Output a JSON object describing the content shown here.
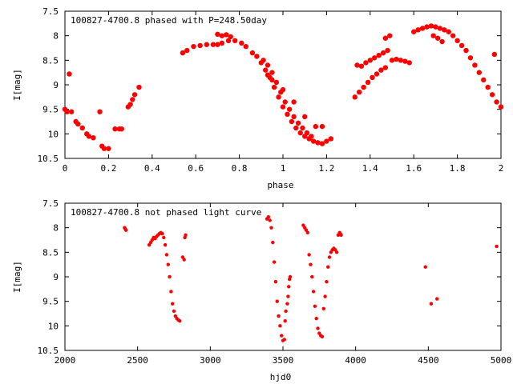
{
  "chart_data": [
    {
      "type": "scatter",
      "title": "100827-4700.8 phased with P=248.50day",
      "xlabel": "phase",
      "ylabel": "I[mag]",
      "xlim": [
        0,
        2
      ],
      "ylim": [
        7.5,
        10.5
      ],
      "y_inverted": true,
      "grid": false,
      "x_ticks": [
        "0",
        "0.2",
        "0.4",
        "0.6",
        "0.8",
        "1",
        "1.2",
        "1.4",
        "1.6",
        "1.8",
        "2"
      ],
      "y_ticks": [
        "7.5",
        "8",
        "8.5",
        "9",
        "9.5",
        "10",
        "10.5"
      ],
      "marker_color": "#ff0000",
      "x": [
        0.0,
        0.01,
        0.02,
        0.03,
        0.05,
        0.06,
        0.08,
        0.1,
        0.11,
        0.13,
        0.16,
        0.17,
        0.18,
        0.2,
        0.23,
        0.25,
        0.26,
        0.29,
        0.3,
        0.31,
        0.32,
        0.34,
        0.54,
        0.56,
        0.59,
        0.62,
        0.65,
        0.68,
        0.7,
        0.72,
        0.75,
        0.78,
        0.81,
        0.83,
        0.86,
        0.88,
        0.9,
        0.92,
        0.94,
        0.96,
        0.98,
        1.0,
        1.02,
        1.04,
        1.06,
        1.08,
        1.1,
        1.12,
        1.14,
        1.16,
        1.18,
        1.2,
        1.22,
        0.91,
        0.93,
        0.95,
        0.97,
        0.99,
        1.01,
        1.03,
        1.05,
        1.07,
        1.09,
        1.11,
        1.13,
        0.7,
        0.72,
        0.74,
        0.76,
        0.93,
        0.95,
        1.0,
        1.05,
        1.1,
        1.15,
        1.18,
        1.33,
        1.35,
        1.37,
        1.39,
        1.41,
        1.43,
        1.45,
        1.47,
        1.34,
        1.36,
        1.38,
        1.4,
        1.42,
        1.44,
        1.46,
        1.48,
        1.5,
        1.52,
        1.54,
        1.56,
        1.58,
        1.47,
        1.49,
        1.6,
        1.62,
        1.64,
        1.66,
        1.68,
        1.7,
        1.72,
        1.74,
        1.76,
        1.78,
        1.8,
        1.82,
        1.84,
        1.86,
        1.88,
        1.9,
        1.92,
        1.94,
        1.96,
        1.98,
        2.0,
        1.69,
        1.71,
        1.73,
        1.97
      ],
      "y": [
        9.5,
        9.55,
        8.78,
        9.55,
        9.75,
        9.8,
        9.88,
        10.0,
        10.05,
        10.08,
        9.55,
        10.25,
        10.3,
        10.3,
        9.9,
        9.9,
        9.9,
        9.45,
        9.4,
        9.3,
        9.2,
        9.05,
        8.35,
        8.3,
        8.22,
        8.2,
        8.18,
        8.18,
        8.18,
        8.15,
        8.1,
        8.1,
        8.15,
        8.22,
        8.35,
        8.42,
        8.55,
        8.7,
        8.85,
        9.05,
        9.25,
        9.45,
        9.6,
        9.75,
        9.88,
        9.98,
        10.05,
        10.1,
        10.15,
        10.18,
        10.2,
        10.15,
        10.1,
        8.5,
        8.6,
        8.75,
        8.95,
        9.15,
        9.35,
        9.5,
        9.65,
        9.78,
        9.88,
        9.98,
        10.05,
        7.97,
        8.0,
        7.98,
        8.02,
        8.8,
        8.9,
        9.1,
        9.35,
        9.65,
        9.85,
        9.85,
        9.25,
        9.15,
        9.05,
        8.95,
        8.85,
        8.78,
        8.7,
        8.65,
        8.6,
        8.62,
        8.55,
        8.5,
        8.45,
        8.4,
        8.35,
        8.3,
        8.5,
        8.48,
        8.5,
        8.52,
        8.55,
        8.05,
        8.0,
        7.92,
        7.88,
        7.85,
        7.82,
        7.8,
        7.82,
        7.85,
        7.88,
        7.92,
        8.0,
        8.1,
        8.2,
        8.3,
        8.45,
        8.6,
        8.75,
        8.9,
        9.05,
        9.2,
        9.35,
        9.45,
        8.0,
        8.05,
        8.12,
        8.38
      ]
    },
    {
      "type": "scatter",
      "title": "100827-4700.8 not phased light curve",
      "xlabel": "hjd0",
      "ylabel": "I[mag]",
      "xlim": [
        2000,
        5000
      ],
      "ylim": [
        7.5,
        10.5
      ],
      "y_inverted": true,
      "grid": false,
      "x_ticks": [
        "2000",
        "2500",
        "3000",
        "3500",
        "4000",
        "4500",
        "5000"
      ],
      "y_ticks": [
        "7.5",
        "8",
        "8.5",
        "9",
        "9.5",
        "10",
        "10.5"
      ],
      "marker_color": "#ff0000",
      "x": [
        2410,
        2415,
        2420,
        2580,
        2590,
        2600,
        2610,
        2620,
        2630,
        2640,
        2650,
        2660,
        2670,
        2680,
        2690,
        2700,
        2710,
        2720,
        2730,
        2740,
        2750,
        2760,
        2770,
        2780,
        2790,
        2810,
        2820,
        2825,
        2830,
        3390,
        3400,
        3410,
        3420,
        3430,
        3440,
        3450,
        3460,
        3470,
        3480,
        3490,
        3500,
        3510,
        3515,
        3520,
        3530,
        3535,
        3540,
        3545,
        3550,
        3640,
        3650,
        3660,
        3670,
        3680,
        3690,
        3700,
        3710,
        3720,
        3730,
        3740,
        3750,
        3760,
        3770,
        3780,
        3790,
        3800,
        3810,
        3820,
        3830,
        3840,
        3850,
        3860,
        3870,
        3880,
        3890,
        3895,
        3900,
        4480,
        4520,
        4560,
        4970
      ],
      "y": [
        8.0,
        8.02,
        8.05,
        8.35,
        8.3,
        8.25,
        8.2,
        8.22,
        8.18,
        8.15,
        8.12,
        8.1,
        8.12,
        8.2,
        8.35,
        8.55,
        8.75,
        9.0,
        9.3,
        9.55,
        9.7,
        9.8,
        9.85,
        9.88,
        9.9,
        8.6,
        8.65,
        8.2,
        8.15,
        7.82,
        7.78,
        7.85,
        8.0,
        8.3,
        8.7,
        9.1,
        9.5,
        9.8,
        10.0,
        10.2,
        10.3,
        10.28,
        9.9,
        9.7,
        9.55,
        9.4,
        9.2,
        9.05,
        9.0,
        7.95,
        8.0,
        8.05,
        8.1,
        8.55,
        8.75,
        9.0,
        9.3,
        9.6,
        9.85,
        10.05,
        10.15,
        10.2,
        10.22,
        9.65,
        9.4,
        9.1,
        8.8,
        8.6,
        8.5,
        8.45,
        8.42,
        8.45,
        8.5,
        8.15,
        8.1,
        8.12,
        8.15,
        8.8,
        9.55,
        9.45,
        8.38
      ]
    }
  ]
}
